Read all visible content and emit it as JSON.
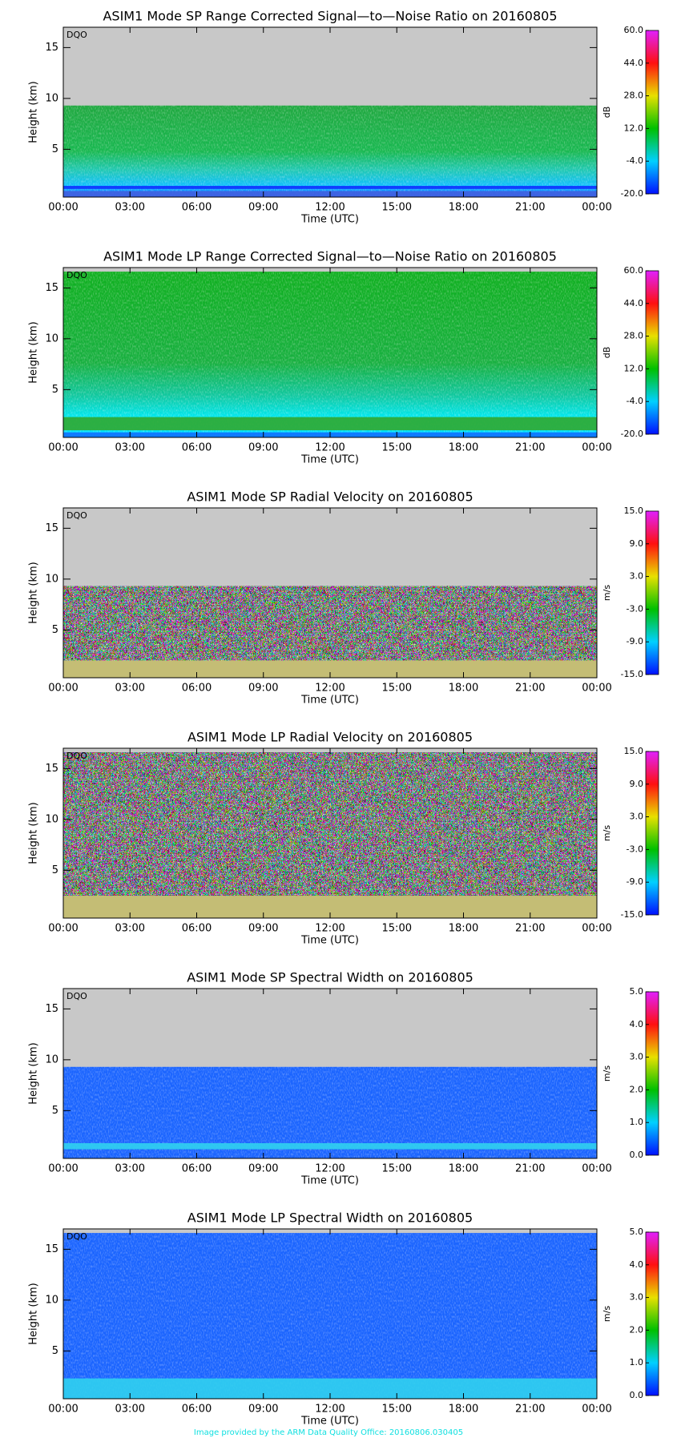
{
  "chart_data": [
    {
      "type": "heatmap",
      "title": "ASIM1 Mode SP Range Corrected Signal—to—Noise Ratio on 20160805",
      "annotation": "DQO",
      "xlabel": "Time (UTC)",
      "ylabel": "Height (km)",
      "colorbar_label": "dB",
      "xlim": [
        0,
        24
      ],
      "xticks": [
        {
          "value": 0,
          "label": "00:00"
        },
        {
          "value": 3,
          "label": "03:00"
        },
        {
          "value": 6,
          "label": "06:00"
        },
        {
          "value": 9,
          "label": "09:00"
        },
        {
          "value": 12,
          "label": "12:00"
        },
        {
          "value": 15,
          "label": "15:00"
        },
        {
          "value": 18,
          "label": "18:00"
        },
        {
          "value": 21,
          "label": "21:00"
        },
        {
          "value": 24,
          "label": "00:00"
        }
      ],
      "ylim": [
        0.3,
        17
      ],
      "yticks": [
        5,
        10,
        15
      ],
      "clim": [
        -20,
        60
      ],
      "cticks": [
        {
          "value": -20,
          "label": "-20.0"
        },
        {
          "value": -4,
          "label": "-4.0"
        },
        {
          "value": 12,
          "label": "12.0"
        },
        {
          "value": 28,
          "label": "28.0"
        },
        {
          "value": 44,
          "label": "44.0"
        },
        {
          "value": 60,
          "label": "60.0"
        }
      ]
    },
    {
      "type": "heatmap",
      "title": "ASIM1 Mode LP Range Corrected Signal—to—Noise Ratio on 20160805",
      "annotation": "DQO",
      "xlabel": "Time (UTC)",
      "ylabel": "Height (km)",
      "colorbar_label": "dB",
      "xlim": [
        0,
        24
      ],
      "xticks": [
        {
          "value": 0,
          "label": "00:00"
        },
        {
          "value": 3,
          "label": "03:00"
        },
        {
          "value": 6,
          "label": "06:00"
        },
        {
          "value": 9,
          "label": "09:00"
        },
        {
          "value": 12,
          "label": "12:00"
        },
        {
          "value": 15,
          "label": "15:00"
        },
        {
          "value": 18,
          "label": "18:00"
        },
        {
          "value": 21,
          "label": "21:00"
        },
        {
          "value": 24,
          "label": "00:00"
        }
      ],
      "ylim": [
        0.3,
        17
      ],
      "yticks": [
        5,
        10,
        15
      ],
      "clim": [
        -20,
        60
      ],
      "cticks": [
        {
          "value": -20,
          "label": "-20.0"
        },
        {
          "value": -4,
          "label": "-4.0"
        },
        {
          "value": 12,
          "label": "12.0"
        },
        {
          "value": 28,
          "label": "28.0"
        },
        {
          "value": 44,
          "label": "44.0"
        },
        {
          "value": 60,
          "label": "60.0"
        }
      ]
    },
    {
      "type": "heatmap",
      "title": "ASIM1 Mode SP Radial Velocity  on 20160805",
      "annotation": "DQO",
      "xlabel": "Time (UTC)",
      "ylabel": "Height (km)",
      "colorbar_label": "m/s",
      "xlim": [
        0,
        24
      ],
      "xticks": [
        {
          "value": 0,
          "label": "00:00"
        },
        {
          "value": 3,
          "label": "03:00"
        },
        {
          "value": 6,
          "label": "06:00"
        },
        {
          "value": 9,
          "label": "09:00"
        },
        {
          "value": 12,
          "label": "12:00"
        },
        {
          "value": 15,
          "label": "15:00"
        },
        {
          "value": 18,
          "label": "18:00"
        },
        {
          "value": 21,
          "label": "21:00"
        },
        {
          "value": 24,
          "label": "00:00"
        }
      ],
      "ylim": [
        0.3,
        17
      ],
      "yticks": [
        5,
        10,
        15
      ],
      "clim": [
        -15,
        15
      ],
      "cticks": [
        {
          "value": -15,
          "label": "-15.0"
        },
        {
          "value": -9,
          "label": "-9.0"
        },
        {
          "value": -3,
          "label": "-3.0"
        },
        {
          "value": 3,
          "label": "3.0"
        },
        {
          "value": 9,
          "label": "9.0"
        },
        {
          "value": 15,
          "label": "15.0"
        }
      ]
    },
    {
      "type": "heatmap",
      "title": "ASIM1 Mode LP Radial Velocity  on 20160805",
      "annotation": "DQO",
      "xlabel": "Time (UTC)",
      "ylabel": "Height (km)",
      "colorbar_label": "m/s",
      "xlim": [
        0,
        24
      ],
      "xticks": [
        {
          "value": 0,
          "label": "00:00"
        },
        {
          "value": 3,
          "label": "03:00"
        },
        {
          "value": 6,
          "label": "06:00"
        },
        {
          "value": 9,
          "label": "09:00"
        },
        {
          "value": 12,
          "label": "12:00"
        },
        {
          "value": 15,
          "label": "15:00"
        },
        {
          "value": 18,
          "label": "18:00"
        },
        {
          "value": 21,
          "label": "21:00"
        },
        {
          "value": 24,
          "label": "00:00"
        }
      ],
      "ylim": [
        0.3,
        17
      ],
      "yticks": [
        5,
        10,
        15
      ],
      "clim": [
        -15,
        15
      ],
      "cticks": [
        {
          "value": -15,
          "label": "-15.0"
        },
        {
          "value": -9,
          "label": "-9.0"
        },
        {
          "value": -3,
          "label": "-3.0"
        },
        {
          "value": 3,
          "label": "3.0"
        },
        {
          "value": 9,
          "label": "9.0"
        },
        {
          "value": 15,
          "label": "15.0"
        }
      ]
    },
    {
      "type": "heatmap",
      "title": "ASIM1 Mode SP Spectral Width  on 20160805",
      "annotation": "DQO",
      "xlabel": "Time (UTC)",
      "ylabel": "Height (km)",
      "colorbar_label": "m/s",
      "xlim": [
        0,
        24
      ],
      "xticks": [
        {
          "value": 0,
          "label": "00:00"
        },
        {
          "value": 3,
          "label": "03:00"
        },
        {
          "value": 6,
          "label": "06:00"
        },
        {
          "value": 9,
          "label": "09:00"
        },
        {
          "value": 12,
          "label": "12:00"
        },
        {
          "value": 15,
          "label": "15:00"
        },
        {
          "value": 18,
          "label": "18:00"
        },
        {
          "value": 21,
          "label": "21:00"
        },
        {
          "value": 24,
          "label": "00:00"
        }
      ],
      "ylim": [
        0.3,
        17
      ],
      "yticks": [
        5,
        10,
        15
      ],
      "clim": [
        0,
        5
      ],
      "cticks": [
        {
          "value": 0,
          "label": "0.0"
        },
        {
          "value": 1,
          "label": "1.0"
        },
        {
          "value": 2,
          "label": "2.0"
        },
        {
          "value": 3,
          "label": "3.0"
        },
        {
          "value": 4,
          "label": "4.0"
        },
        {
          "value": 5,
          "label": "5.0"
        }
      ]
    },
    {
      "type": "heatmap",
      "title": "ASIM1 Mode LP Spectral Width  on 20160805",
      "annotation": "DQO",
      "xlabel": "Time (UTC)",
      "ylabel": "Height (km)",
      "colorbar_label": "m/s",
      "xlim": [
        0,
        24
      ],
      "xticks": [
        {
          "value": 0,
          "label": "00:00"
        },
        {
          "value": 3,
          "label": "03:00"
        },
        {
          "value": 6,
          "label": "06:00"
        },
        {
          "value": 9,
          "label": "09:00"
        },
        {
          "value": 12,
          "label": "12:00"
        },
        {
          "value": 15,
          "label": "15:00"
        },
        {
          "value": 18,
          "label": "18:00"
        },
        {
          "value": 21,
          "label": "21:00"
        },
        {
          "value": 24,
          "label": "00:00"
        }
      ],
      "ylim": [
        0.3,
        17
      ],
      "yticks": [
        5,
        10,
        15
      ],
      "clim": [
        0,
        5
      ],
      "cticks": [
        {
          "value": 0,
          "label": "0.0"
        },
        {
          "value": 1,
          "label": "1.0"
        },
        {
          "value": 2,
          "label": "2.0"
        },
        {
          "value": 3,
          "label": "3.0"
        },
        {
          "value": 4,
          "label": "4.0"
        },
        {
          "value": 5,
          "label": "5.0"
        }
      ]
    }
  ],
  "footer": "Image provided by the ARM Data Quality Office: 20160806.030405"
}
